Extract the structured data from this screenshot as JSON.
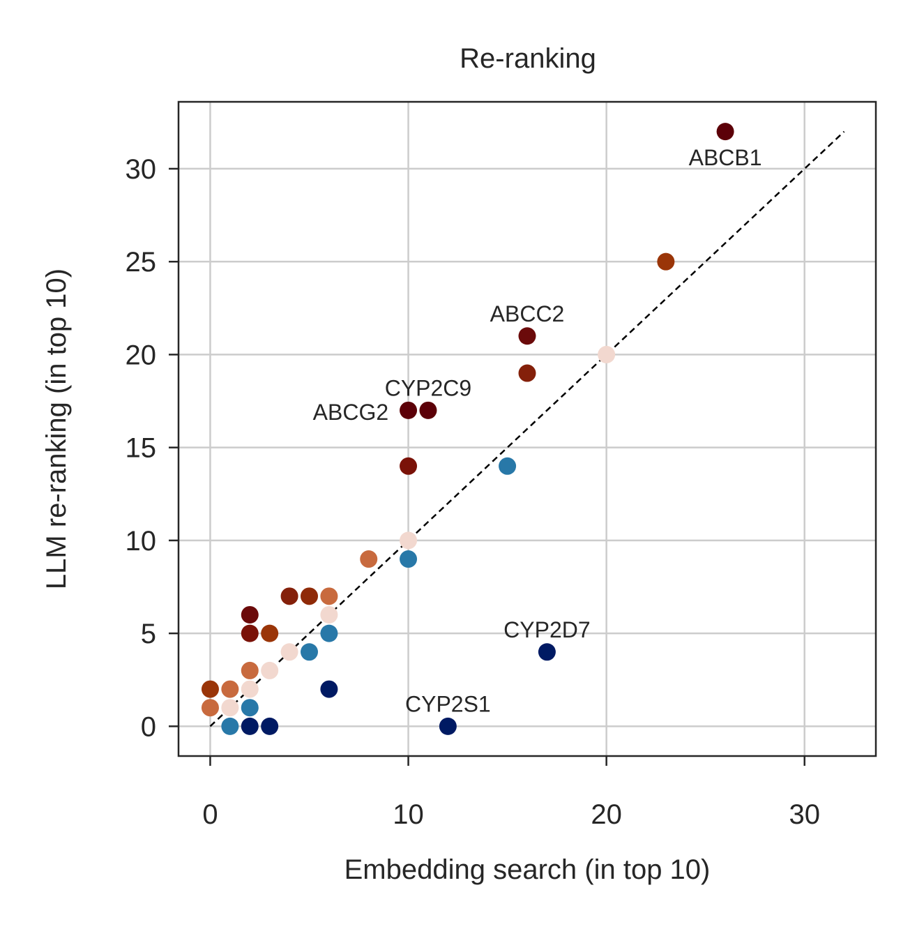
{
  "chart_data": {
    "type": "scatter",
    "title": "Re-ranking",
    "xlabel": "Embedding search (in top 10)",
    "ylabel": "LLM re-ranking (in top 10)",
    "xlim": [
      -1.6,
      33.6
    ],
    "ylim": [
      -1.6,
      33.6
    ],
    "xticks": [
      0,
      10,
      20,
      30
    ],
    "yticks": [
      0,
      5,
      10,
      15,
      20,
      25,
      30
    ],
    "grid": true,
    "reference_line": {
      "style": "dashed",
      "color": "#000000",
      "from": [
        0,
        0
      ],
      "to": [
        32,
        32
      ]
    },
    "points": [
      {
        "x": 26,
        "y": 32,
        "color": "#5c0008"
      },
      {
        "x": 23,
        "y": 25,
        "color": "#9a3508"
      },
      {
        "x": 16,
        "y": 21,
        "color": "#6b0a0a"
      },
      {
        "x": 16,
        "y": 19,
        "color": "#84200a"
      },
      {
        "x": 20,
        "y": 20,
        "color": "#f2d8cf"
      },
      {
        "x": 10,
        "y": 17,
        "color": "#5c0008"
      },
      {
        "x": 11,
        "y": 17,
        "color": "#5c0008"
      },
      {
        "x": 10,
        "y": 14,
        "color": "#7a1208"
      },
      {
        "x": 15,
        "y": 14,
        "color": "#2878a8"
      },
      {
        "x": 10,
        "y": 10,
        "color": "#f2d8cf"
      },
      {
        "x": 8,
        "y": 9,
        "color": "#c86a3e"
      },
      {
        "x": 10,
        "y": 9,
        "color": "#2878a8"
      },
      {
        "x": 4,
        "y": 7,
        "color": "#84200a"
      },
      {
        "x": 5,
        "y": 7,
        "color": "#8f2a08"
      },
      {
        "x": 6,
        "y": 7,
        "color": "#c86a3e"
      },
      {
        "x": 6,
        "y": 6,
        "color": "#f2d8cf"
      },
      {
        "x": 2,
        "y": 6,
        "color": "#6b0a0a"
      },
      {
        "x": 2,
        "y": 5,
        "color": "#7a1208"
      },
      {
        "x": 3,
        "y": 5,
        "color": "#9a3508"
      },
      {
        "x": 6,
        "y": 5,
        "color": "#2878a8"
      },
      {
        "x": 4,
        "y": 4,
        "color": "#f2d8cf"
      },
      {
        "x": 5,
        "y": 4,
        "color": "#2878a8"
      },
      {
        "x": 17,
        "y": 4,
        "color": "#001a63"
      },
      {
        "x": 2,
        "y": 3,
        "color": "#c86a3e"
      },
      {
        "x": 3,
        "y": 3,
        "color": "#f2d8cf"
      },
      {
        "x": 2,
        "y": 2,
        "color": "#f2d8cf"
      },
      {
        "x": 6,
        "y": 2,
        "color": "#001a63"
      },
      {
        "x": 0,
        "y": 2,
        "color": "#9a3508"
      },
      {
        "x": 1,
        "y": 2,
        "color": "#c86a3e"
      },
      {
        "x": 0,
        "y": 1,
        "color": "#c86a3e"
      },
      {
        "x": 1,
        "y": 1,
        "color": "#f2d8cf"
      },
      {
        "x": 2,
        "y": 1,
        "color": "#2878a8"
      },
      {
        "x": 1,
        "y": 0,
        "color": "#2878a8"
      },
      {
        "x": 2,
        "y": 0,
        "color": "#001a63"
      },
      {
        "x": 3,
        "y": 0,
        "color": "#001a63"
      },
      {
        "x": 12,
        "y": 0,
        "color": "#001a63"
      }
    ],
    "annotations": [
      {
        "text": "ABCB1",
        "x": 26,
        "y": 30.6,
        "anchor": "middle"
      },
      {
        "text": "ABCC2",
        "x": 16,
        "y": 22.2,
        "anchor": "middle"
      },
      {
        "text": "CYP2C9",
        "x": 11,
        "y": 18.2,
        "anchor": "middle"
      },
      {
        "text": "ABCG2",
        "x": 9.0,
        "y": 16.9,
        "anchor": "end"
      },
      {
        "text": "CYP2D7",
        "x": 17,
        "y": 5.2,
        "anchor": "middle"
      },
      {
        "text": "CYP2S1",
        "x": 12,
        "y": 1.2,
        "anchor": "middle"
      }
    ]
  }
}
